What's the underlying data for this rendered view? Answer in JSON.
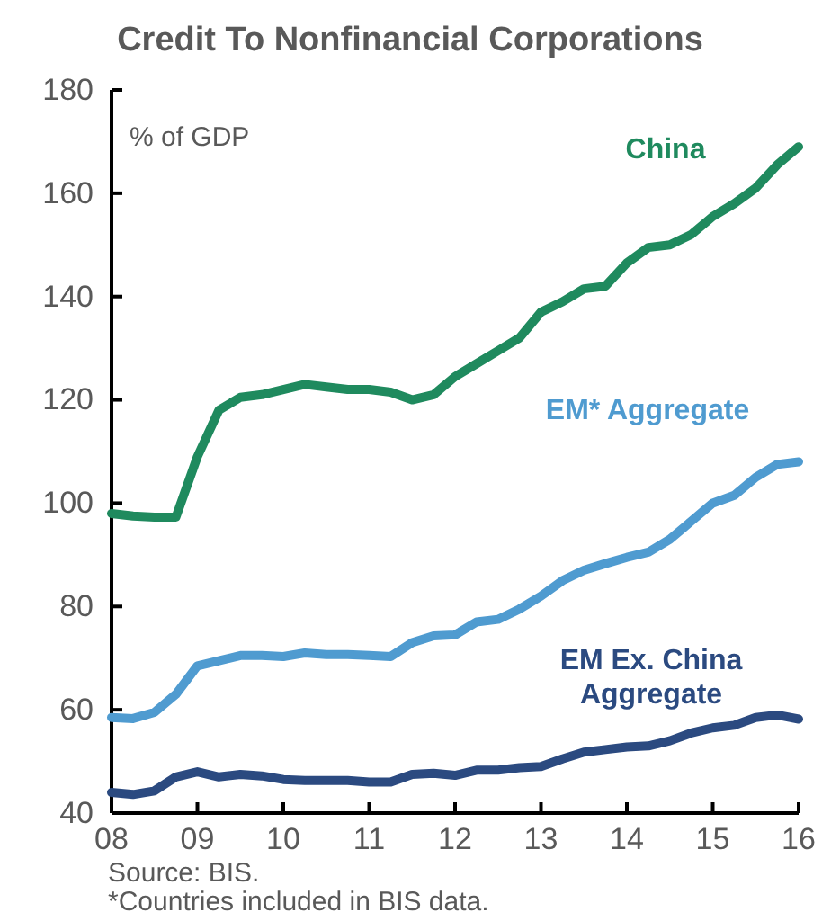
{
  "chart_data": {
    "type": "line",
    "title": "Credit To Nonfinancial Corporations",
    "ylabel": "% of GDP",
    "x": [
      2008,
      2008.25,
      2008.5,
      2008.75,
      2009,
      2009.25,
      2009.5,
      2009.75,
      2010,
      2010.25,
      2010.5,
      2010.75,
      2011,
      2011.25,
      2011.5,
      2011.75,
      2012,
      2012.25,
      2012.5,
      2012.75,
      2013,
      2013.25,
      2013.5,
      2013.75,
      2014,
      2014.25,
      2014.5,
      2014.75,
      2015,
      2015.25,
      2015.5,
      2015.75,
      2016
    ],
    "series": [
      {
        "name": "China",
        "color": "#1f8a5e",
        "values": [
          98,
          97.5,
          97.3,
          97.3,
          109,
          118,
          120.5,
          121,
          122,
          123,
          122.5,
          122,
          122,
          121.5,
          120,
          121,
          124.5,
          127,
          129.5,
          132,
          137,
          139,
          141.5,
          142,
          146.5,
          149.5,
          150,
          152,
          155.5,
          158,
          161,
          165.5,
          169
        ]
      },
      {
        "name": "EM* Aggregate",
        "color": "#4f9bd0",
        "values": [
          58.5,
          58.3,
          59.5,
          63,
          68.5,
          69.5,
          70.5,
          70.5,
          70.3,
          71,
          70.7,
          70.7,
          70.5,
          70.3,
          73,
          74.3,
          74.5,
          77,
          77.5,
          79.5,
          82,
          85,
          87,
          88.3,
          89.5,
          90.5,
          93,
          96.5,
          100,
          101.5,
          105,
          107.5,
          108
        ]
      },
      {
        "name": "EM Ex. China Aggregate",
        "color": "#2b4a80",
        "values": [
          44,
          43.6,
          44.3,
          47,
          48,
          47,
          47.5,
          47.2,
          46.5,
          46.3,
          46.3,
          46.3,
          46,
          46,
          47.5,
          47.7,
          47.3,
          48.3,
          48.3,
          48.8,
          49,
          50.5,
          51.8,
          52.3,
          52.8,
          53,
          54,
          55.5,
          56.5,
          57,
          58.5,
          59,
          58.2
        ]
      }
    ],
    "xlim": [
      2008,
      2016
    ],
    "xticks": [
      {
        "value": 2008,
        "label": "08"
      },
      {
        "value": 2009,
        "label": "09"
      },
      {
        "value": 2010,
        "label": "10"
      },
      {
        "value": 2011,
        "label": "11"
      },
      {
        "value": 2012,
        "label": "12"
      },
      {
        "value": 2013,
        "label": "13"
      },
      {
        "value": 2014,
        "label": "14"
      },
      {
        "value": 2015,
        "label": "15"
      },
      {
        "value": 2016,
        "label": "16"
      }
    ],
    "ylim": [
      40,
      180
    ],
    "yticks": [
      40,
      60,
      80,
      100,
      120,
      140,
      160,
      180
    ],
    "grid": false,
    "legend": false,
    "marker": "none",
    "line_style": "solid",
    "annotations": [
      "Source: BIS.",
      "*Countries included in BIS data."
    ]
  }
}
